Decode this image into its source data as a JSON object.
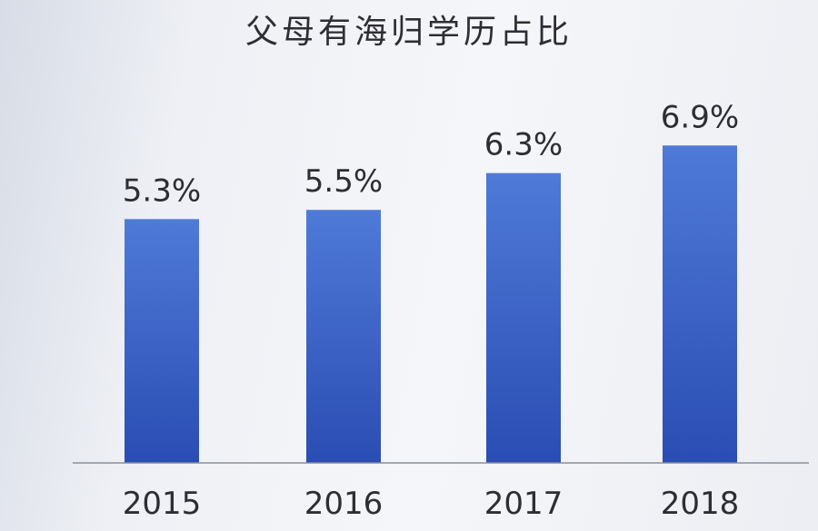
{
  "chart_data": {
    "type": "bar",
    "title": "父母有海归学历占比",
    "categories": [
      "2015",
      "2016",
      "2017",
      "2018"
    ],
    "values": [
      5.3,
      5.5,
      6.3,
      6.9
    ],
    "value_labels": [
      "5.3%",
      "5.5%",
      "6.3%",
      "6.9%"
    ],
    "unit": "%",
    "ylim": [
      0,
      7.3
    ],
    "grid": false,
    "legend": "none",
    "bar_color_top": "#4f7ad8",
    "bar_color_bottom": "#2a4db3",
    "baseline_color": "#8a8f99"
  }
}
